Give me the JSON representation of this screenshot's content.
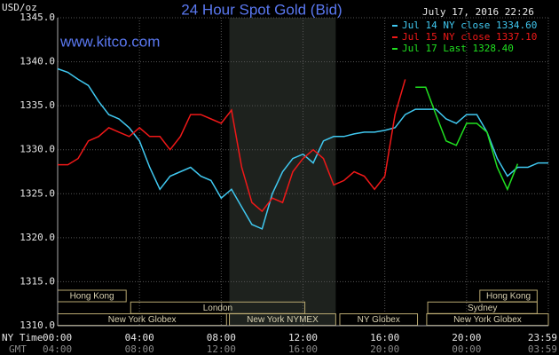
{
  "chart_data": {
    "type": "line",
    "title": "24 Hour Spot Gold (Bid)",
    "y_label": "USD/oz",
    "timestamp": "July 17, 2016 22:26",
    "watermark": "www.kitco.com",
    "x_label": "NY Time",
    "x2_label": "GMT",
    "x": [
      0,
      0.5,
      1,
      1.5,
      2,
      2.5,
      3,
      3.5,
      4,
      4.5,
      5,
      5.5,
      6,
      6.5,
      7,
      7.5,
      8,
      8.5,
      9,
      9.5,
      10,
      10.5,
      11,
      11.5,
      12,
      12.5,
      13,
      13.5,
      14,
      14.5,
      15,
      15.5,
      16,
      16.5,
      17,
      17.5,
      18,
      18.5,
      19,
      19.5,
      20,
      20.5,
      21,
      21.5,
      22,
      22.5,
      23,
      23.5,
      24
    ],
    "series": [
      {
        "name": "Jul 14 NY close 1334.60",
        "color": "#40c8f0",
        "values": [
          1339.2,
          1338.8,
          1338.0,
          1337.3,
          1335.5,
          1334.0,
          1333.5,
          1332.5,
          1331.0,
          1328.0,
          1325.5,
          1327.0,
          1327.5,
          1328.0,
          1327.0,
          1326.5,
          1324.5,
          1325.5,
          1323.5,
          1321.5,
          1321.0,
          1325.0,
          1327.5,
          1329.0,
          1329.5,
          1328.5,
          1331.0,
          1331.5,
          1331.5,
          1331.8,
          1332.0,
          1332.0,
          1332.2,
          1332.5,
          1334.0,
          1334.6,
          1334.6,
          1334.6,
          1333.5,
          1333.0,
          1334.0,
          1334.0,
          1332.0,
          1329.0,
          1327.0,
          1328.0,
          1328.0,
          1328.5,
          1328.5
        ]
      },
      {
        "name": "Jul 15 NY close 1337.10",
        "color": "#f01818",
        "values": [
          1328.3,
          1328.3,
          1329.0,
          1331.0,
          1331.5,
          1332.5,
          1332.0,
          1331.5,
          1332.5,
          1331.5,
          1331.5,
          1330.0,
          1331.5,
          1334.0,
          1334.0,
          1333.5,
          1333.0,
          1334.5,
          1328.0,
          1324.0,
          1323.0,
          1324.5,
          1324.0,
          1327.5,
          1329.0,
          1330.0,
          1329.0,
          1326.0,
          1326.5,
          1327.5,
          1327.0,
          1325.5,
          1327.0,
          1334.0,
          1338.0,
          null,
          null,
          null,
          null,
          null,
          null,
          null,
          null,
          null,
          null,
          null,
          null,
          null,
          null
        ]
      },
      {
        "name": "Jul 17 Last 1328.40",
        "color": "#20e020",
        "values": [
          null,
          null,
          null,
          null,
          null,
          null,
          null,
          null,
          null,
          null,
          null,
          null,
          null,
          null,
          null,
          null,
          null,
          null,
          null,
          null,
          null,
          null,
          null,
          null,
          null,
          null,
          null,
          null,
          null,
          null,
          null,
          null,
          null,
          null,
          null,
          1337.1,
          1337.1,
          1334.0,
          1331.0,
          1330.5,
          1333.0,
          1333.0,
          1332.0,
          1328.0,
          1325.5,
          1328.4,
          null,
          null,
          null
        ]
      }
    ],
    "xlim": [
      0,
      24
    ],
    "xticks": [
      {
        "value": 0,
        "label": "00:00"
      },
      {
        "value": 4,
        "label": "04:00"
      },
      {
        "value": 8,
        "label": "08:00"
      },
      {
        "value": 12,
        "label": "12:00"
      },
      {
        "value": 16,
        "label": "16:00"
      },
      {
        "value": 20,
        "label": "20:00"
      },
      {
        "value": 24,
        "label": "23:59"
      }
    ],
    "x2ticks": [
      "04:00",
      "08:00",
      "12:00",
      "16:00",
      "20:00",
      "00:00",
      "03:59"
    ],
    "ylim": [
      1310,
      1345
    ],
    "yticks": [
      {
        "value": 1310,
        "label": "1310.0"
      },
      {
        "value": 1315,
        "label": "1315.0"
      },
      {
        "value": 1320,
        "label": "1320.0"
      },
      {
        "value": 1325,
        "label": "1325.0"
      },
      {
        "value": 1330,
        "label": "1330.0"
      },
      {
        "value": 1335,
        "label": "1335.0"
      },
      {
        "value": 1340,
        "label": "1340.0"
      },
      {
        "value": 1345,
        "label": "1345.0"
      }
    ],
    "grid": true,
    "sessions": [
      [
        {
          "name": "Hong Kong",
          "start": 0,
          "end": 3.35
        },
        {
          "name": "Hong Kong",
          "start": 20.65,
          "end": 23.45
        }
      ],
      [
        {
          "name": "London",
          "start": 3.57,
          "end": 12.09
        },
        {
          "name": "Sydney",
          "start": 18.1,
          "end": 23.45
        }
      ],
      [
        {
          "name": "New York Globex",
          "start": 0,
          "end": 8.26
        },
        {
          "name": "New York NYMEX",
          "start": 8.4,
          "end": 13.6,
          "shaded": true
        },
        {
          "name": "NY Globex",
          "start": 13.8,
          "end": 17.6
        },
        {
          "name": "New York Globex",
          "start": 18.05,
          "end": 24
        }
      ]
    ]
  }
}
